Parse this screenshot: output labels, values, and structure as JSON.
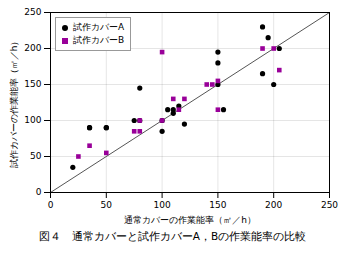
{
  "chart_data": {
    "type": "scatter",
    "xlabel": "通常カバーの作業能率（㎡／h）",
    "ylabel": "試作カバーの作業能率（㎡／h）",
    "caption": "図４　通常カバーと試作カバーA，Bの作業能率の比較",
    "series": [
      {
        "type": "line",
        "color": "#555555",
        "x": [
          0,
          250
        ],
        "values": [
          0,
          250
        ]
      },
      {
        "name": "試作カバーA",
        "color": "black",
        "marker": "circle",
        "x": [
          20,
          35,
          35,
          50,
          50,
          75,
          80,
          80,
          100,
          100,
          105,
          110,
          110,
          115,
          120,
          150,
          150,
          150,
          155,
          190,
          190,
          195,
          200,
          205
        ],
        "values": [
          35,
          90,
          90,
          90,
          90,
          100,
          100,
          145,
          100,
          85,
          115,
          110,
          115,
          120,
          95,
          150,
          180,
          195,
          115,
          230,
          165,
          215,
          150,
          200
        ]
      },
      {
        "name": "試作カバーB",
        "color": "#990099",
        "marker": "square",
        "x": [
          25,
          35,
          50,
          75,
          80,
          80,
          100,
          100,
          110,
          115,
          120,
          140,
          145,
          150,
          150,
          190,
          200,
          205
        ],
        "values": [
          50,
          65,
          55,
          85,
          85,
          100,
          100,
          195,
          130,
          115,
          130,
          150,
          150,
          155,
          115,
          200,
          200,
          170
        ]
      }
    ],
    "xlim": [
      0,
      250
    ],
    "ylim": [
      0,
      250
    ],
    "xticks": [
      0,
      50,
      100,
      150,
      200,
      250
    ],
    "yticks": [
      0,
      50,
      100,
      150,
      200,
      250
    ],
    "grid": true,
    "legend": "upper left"
  }
}
